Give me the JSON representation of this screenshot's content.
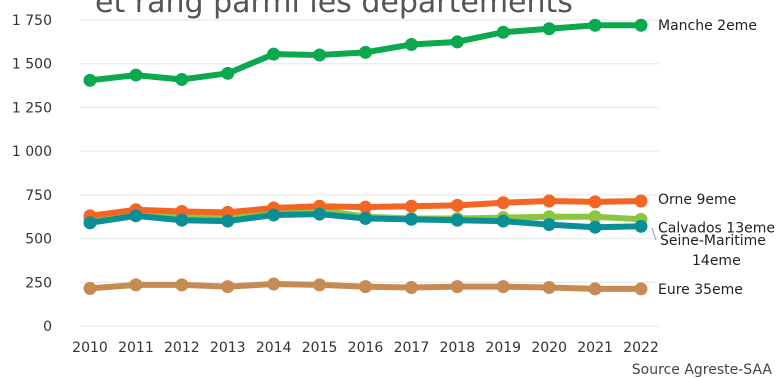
{
  "chart_data": {
    "type": "line",
    "title": "et rang parmi les départements",
    "source": "Source Agreste-SAA",
    "x": [
      2010,
      2011,
      2012,
      2013,
      2014,
      2015,
      2016,
      2017,
      2018,
      2019,
      2020,
      2021,
      2022
    ],
    "ylim": [
      0,
      1750
    ],
    "yticks": [
      0,
      250,
      500,
      750,
      1000,
      1250,
      1500,
      1750
    ],
    "ytick_labels": [
      "0",
      "250",
      "500",
      "750",
      "1 000",
      "1 250",
      "1 500",
      "1 750"
    ],
    "grid": "horizontal",
    "series": [
      {
        "name": "Manche 2eme",
        "label_lines": [
          "Manche 2eme"
        ],
        "color": "#0aa84f",
        "values": [
          1405,
          1435,
          1410,
          1445,
          1555,
          1550,
          1565,
          1610,
          1625,
          1680,
          1700,
          1720,
          1720
        ]
      },
      {
        "name": "Calvados 13eme",
        "label_lines": [
          "Calvados 13eme"
        ],
        "color": "#8cc63f",
        "values": [
          615,
          650,
          630,
          625,
          650,
          665,
          625,
          615,
          615,
          620,
          625,
          625,
          610
        ]
      },
      {
        "name": "Orne 9eme",
        "label_lines": [
          "Orne 9eme"
        ],
        "color": "#f26522",
        "values": [
          630,
          665,
          655,
          650,
          675,
          685,
          680,
          685,
          690,
          705,
          715,
          710,
          715
        ]
      },
      {
        "name": "Seine-Maritime 14eme",
        "label_lines": [
          "Seine-Maritime",
          "14eme"
        ],
        "color": "#0b8f96",
        "values": [
          590,
          630,
          605,
          600,
          635,
          640,
          615,
          610,
          605,
          600,
          580,
          565,
          570
        ]
      },
      {
        "name": "Eure 35eme",
        "label_lines": [
          "Eure 35eme"
        ],
        "color": "#c68b52",
        "values": [
          215,
          235,
          235,
          225,
          240,
          235,
          225,
          220,
          225,
          225,
          220,
          212,
          212
        ]
      }
    ]
  }
}
